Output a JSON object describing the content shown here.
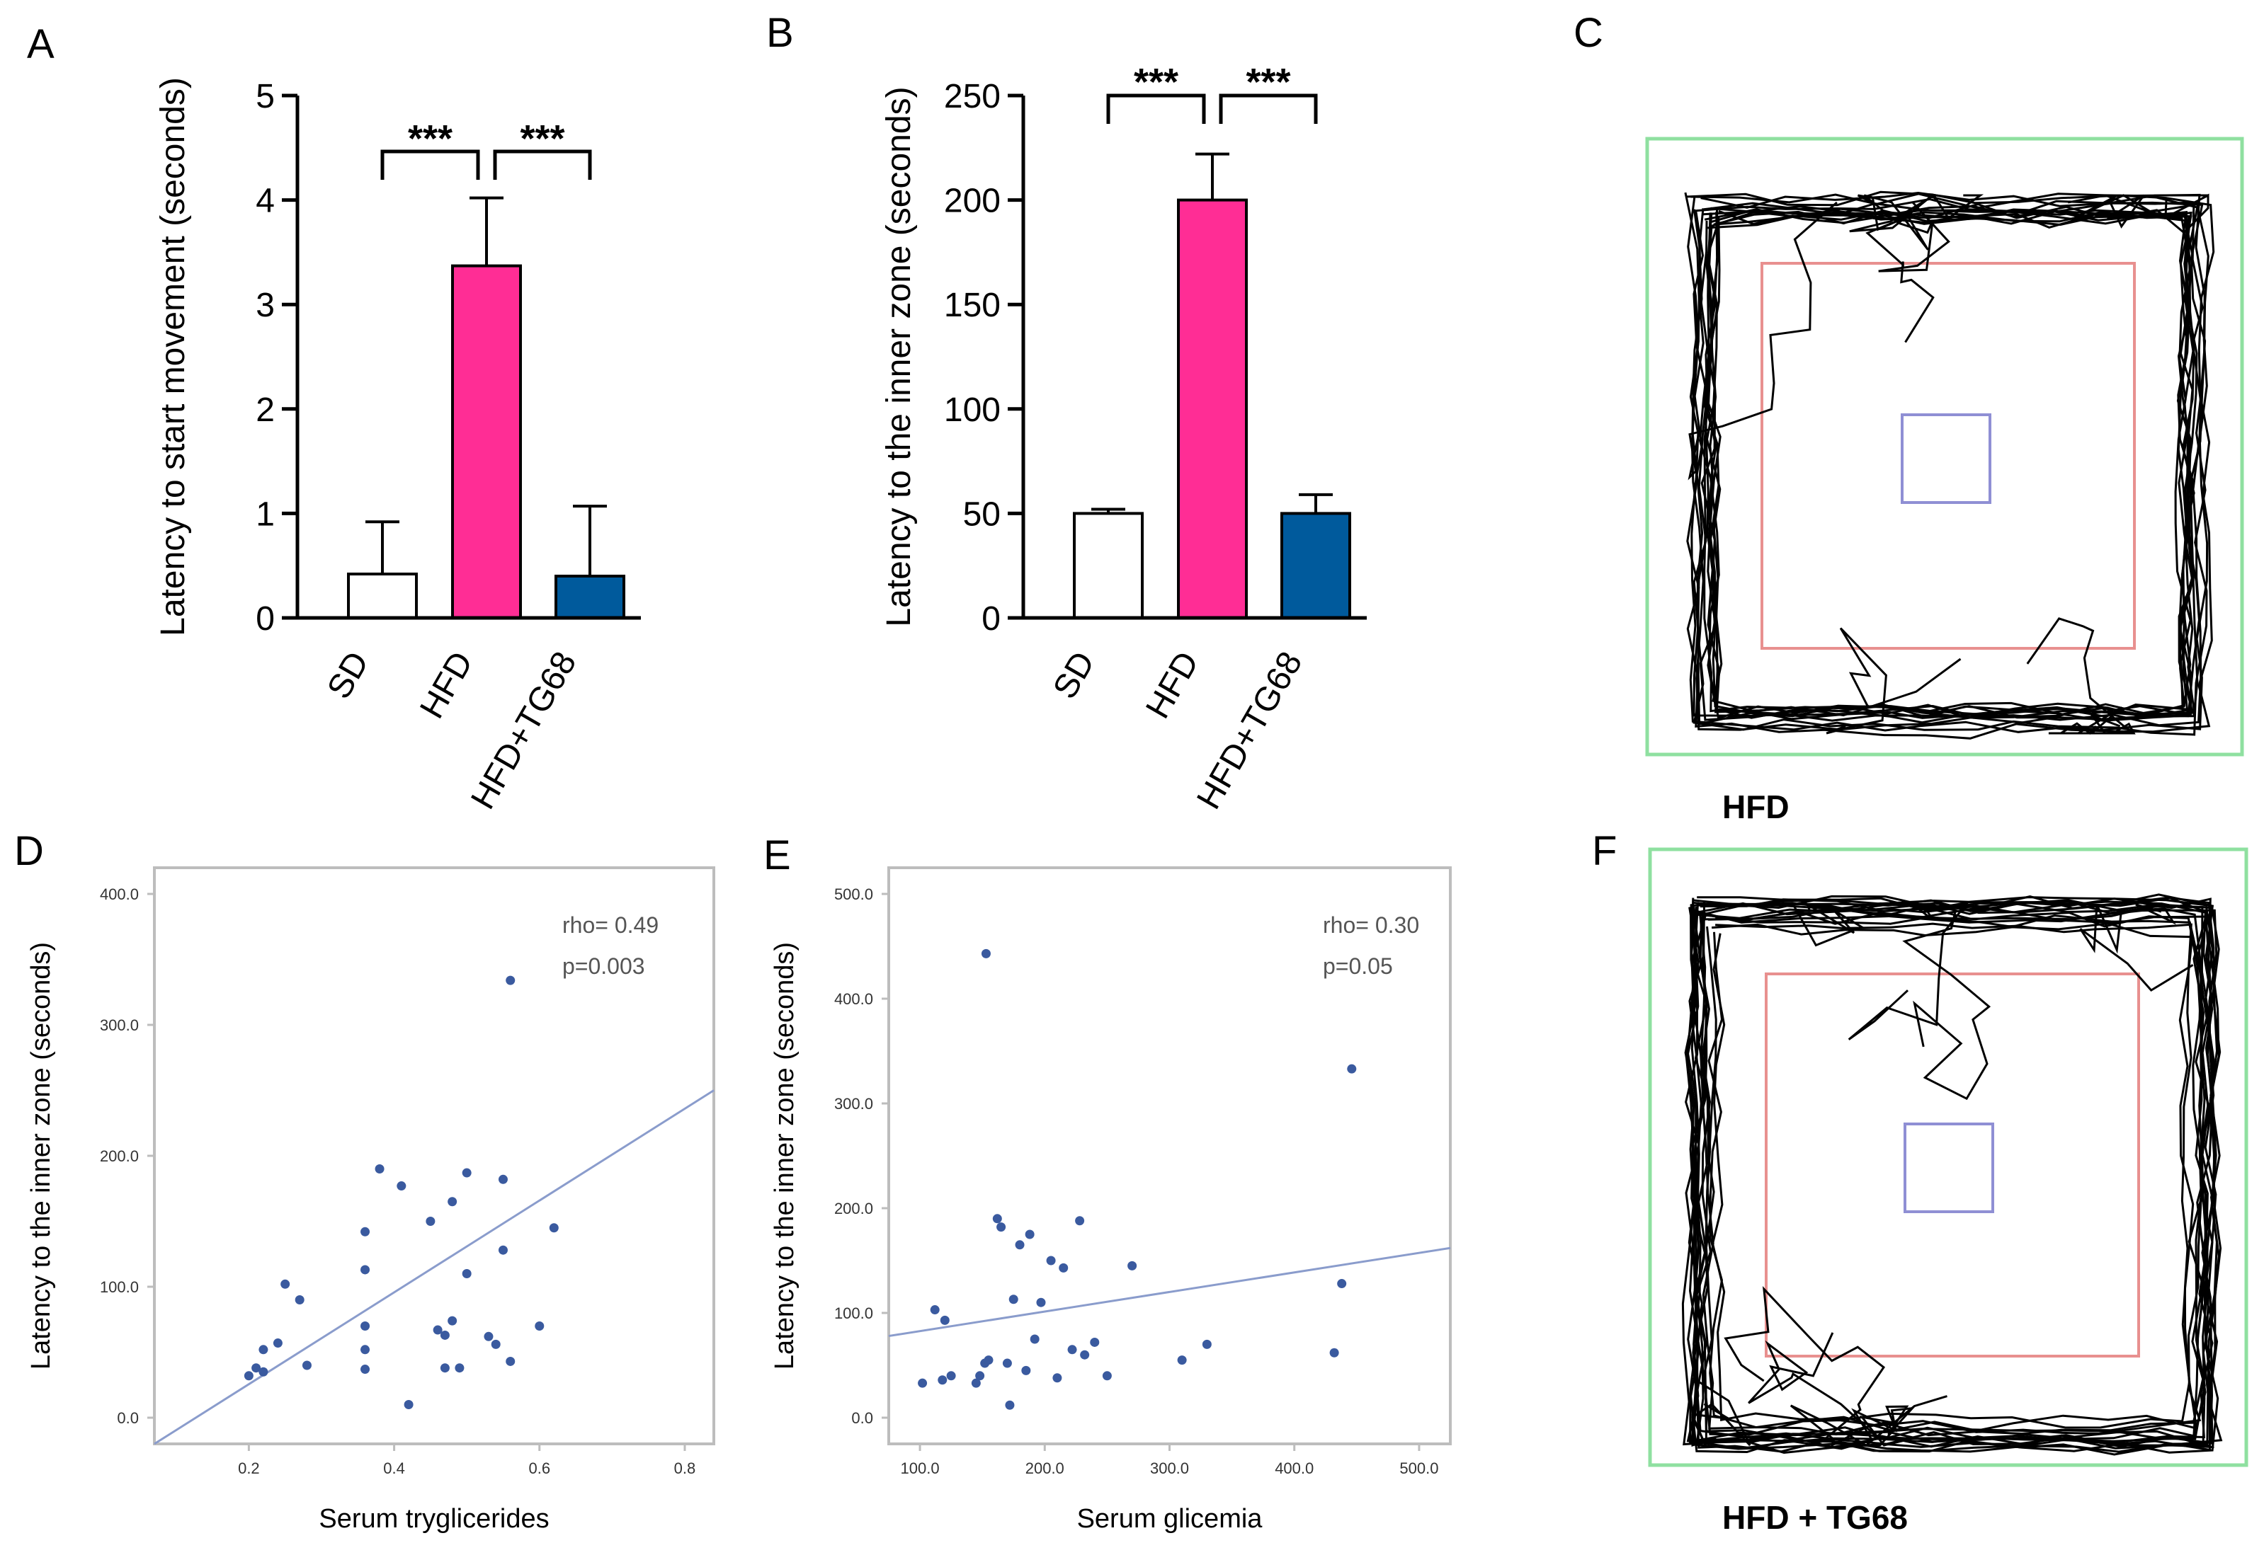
{
  "panels": {
    "A": "A",
    "B": "B",
    "C": "C",
    "D": "D",
    "E": "E",
    "F": "F"
  },
  "colors": {
    "SD": "#ffffff",
    "HFD": "#ff2d95",
    "HFD+TG68": "#005a9c",
    "outer_zone": "#8fe0a0",
    "middle_zone": "#e8908f",
    "inner_zone": "#8f8fd4",
    "scatter_point": "#3a5a9f",
    "fit_line": "#8a9ccc"
  },
  "chart_data": [
    {
      "id": "A",
      "type": "bar",
      "categories": [
        "SD",
        "HFD",
        "HFD+TG68"
      ],
      "values": [
        0.42,
        3.37,
        0.4
      ],
      "errors": [
        0.5,
        0.65,
        0.67
      ],
      "ylabel": "Latency to start movement (seconds)",
      "ylim": [
        0,
        5
      ],
      "yticks": [
        "0",
        "1",
        "2",
        "3",
        "4",
        "5"
      ],
      "significance": [
        {
          "from": "SD",
          "to": "HFD",
          "label": "***"
        },
        {
          "from": "HFD",
          "to": "HFD+TG68",
          "label": "***"
        }
      ]
    },
    {
      "id": "B",
      "type": "bar",
      "categories": [
        "SD",
        "HFD",
        "HFD+TG68"
      ],
      "values": [
        50,
        200,
        50
      ],
      "errors": [
        2,
        22,
        9
      ],
      "ylabel": "Latency to the inner zone (seconds)",
      "ylim": [
        0,
        250
      ],
      "yticks": [
        "0",
        "50",
        "100",
        "150",
        "200",
        "250"
      ],
      "significance": [
        {
          "from": "SD",
          "to": "HFD",
          "label": "***"
        },
        {
          "from": "HFD",
          "to": "HFD+TG68",
          "label": "***"
        }
      ]
    },
    {
      "id": "D",
      "type": "scatter",
      "xlabel": "Serum tryglicerides",
      "ylabel": "Latency to the inner zone (seconds)",
      "xlim": [
        0.07,
        0.84
      ],
      "ylim": [
        -20,
        420
      ],
      "xticks": [
        "0.2",
        "0.4",
        "0.6",
        "0.8"
      ],
      "yticks": [
        "0.0",
        "100.0",
        "200.0",
        "300.0",
        "400.0"
      ],
      "annotation": [
        "rho= 0.49",
        "p=0.003"
      ],
      "fit": {
        "x": [
          0.07,
          0.84
        ],
        "y": [
          -20,
          250
        ]
      },
      "points": [
        [
          0.2,
          32
        ],
        [
          0.21,
          38
        ],
        [
          0.22,
          35
        ],
        [
          0.22,
          52
        ],
        [
          0.24,
          57
        ],
        [
          0.25,
          102
        ],
        [
          0.27,
          90
        ],
        [
          0.28,
          40
        ],
        [
          0.36,
          113
        ],
        [
          0.36,
          142
        ],
        [
          0.36,
          70
        ],
        [
          0.36,
          52
        ],
        [
          0.36,
          37
        ],
        [
          0.38,
          190
        ],
        [
          0.41,
          177
        ],
        [
          0.42,
          10
        ],
        [
          0.45,
          150
        ],
        [
          0.46,
          67
        ],
        [
          0.47,
          63
        ],
        [
          0.47,
          38
        ],
        [
          0.48,
          165
        ],
        [
          0.48,
          74
        ],
        [
          0.49,
          38
        ],
        [
          0.5,
          110
        ],
        [
          0.5,
          187
        ],
        [
          0.53,
          62
        ],
        [
          0.54,
          56
        ],
        [
          0.55,
          182
        ],
        [
          0.55,
          128
        ],
        [
          0.56,
          43
        ],
        [
          0.56,
          334
        ],
        [
          0.6,
          70
        ],
        [
          0.62,
          145
        ]
      ]
    },
    {
      "id": "E",
      "type": "scatter",
      "xlabel": "Serum glicemia",
      "ylabel": "Latency to the inner zone (seconds)",
      "xlim": [
        75,
        525
      ],
      "ylim": [
        -25,
        525
      ],
      "xticks": [
        "100.0",
        "200.0",
        "300.0",
        "400.0",
        "500.0"
      ],
      "yticks": [
        "0.0",
        "100.0",
        "200.0",
        "300.0",
        "400.0",
        "500.0"
      ],
      "annotation": [
        "rho= 0.30",
        "p=0.05"
      ],
      "fit": {
        "x": [
          75,
          525
        ],
        "y": [
          78,
          162
        ]
      },
      "points": [
        [
          102,
          33
        ],
        [
          112,
          103
        ],
        [
          118,
          36
        ],
        [
          120,
          93
        ],
        [
          125,
          40
        ],
        [
          145,
          33
        ],
        [
          148,
          40
        ],
        [
          152,
          52
        ],
        [
          153,
          443
        ],
        [
          155,
          55
        ],
        [
          162,
          190
        ],
        [
          165,
          182
        ],
        [
          170,
          52
        ],
        [
          172,
          12
        ],
        [
          175,
          113
        ],
        [
          180,
          165
        ],
        [
          185,
          45
        ],
        [
          188,
          175
        ],
        [
          192,
          75
        ],
        [
          197,
          110
        ],
        [
          205,
          150
        ],
        [
          210,
          38
        ],
        [
          215,
          143
        ],
        [
          222,
          65
        ],
        [
          228,
          188
        ],
        [
          232,
          60
        ],
        [
          240,
          72
        ],
        [
          250,
          40
        ],
        [
          270,
          145
        ],
        [
          310,
          55
        ],
        [
          330,
          70
        ],
        [
          432,
          62
        ],
        [
          438,
          128
        ],
        [
          446,
          333
        ]
      ]
    }
  ],
  "tracks": {
    "C": {
      "caption": "HFD"
    },
    "F": {
      "caption": "HFD + TG68"
    }
  }
}
